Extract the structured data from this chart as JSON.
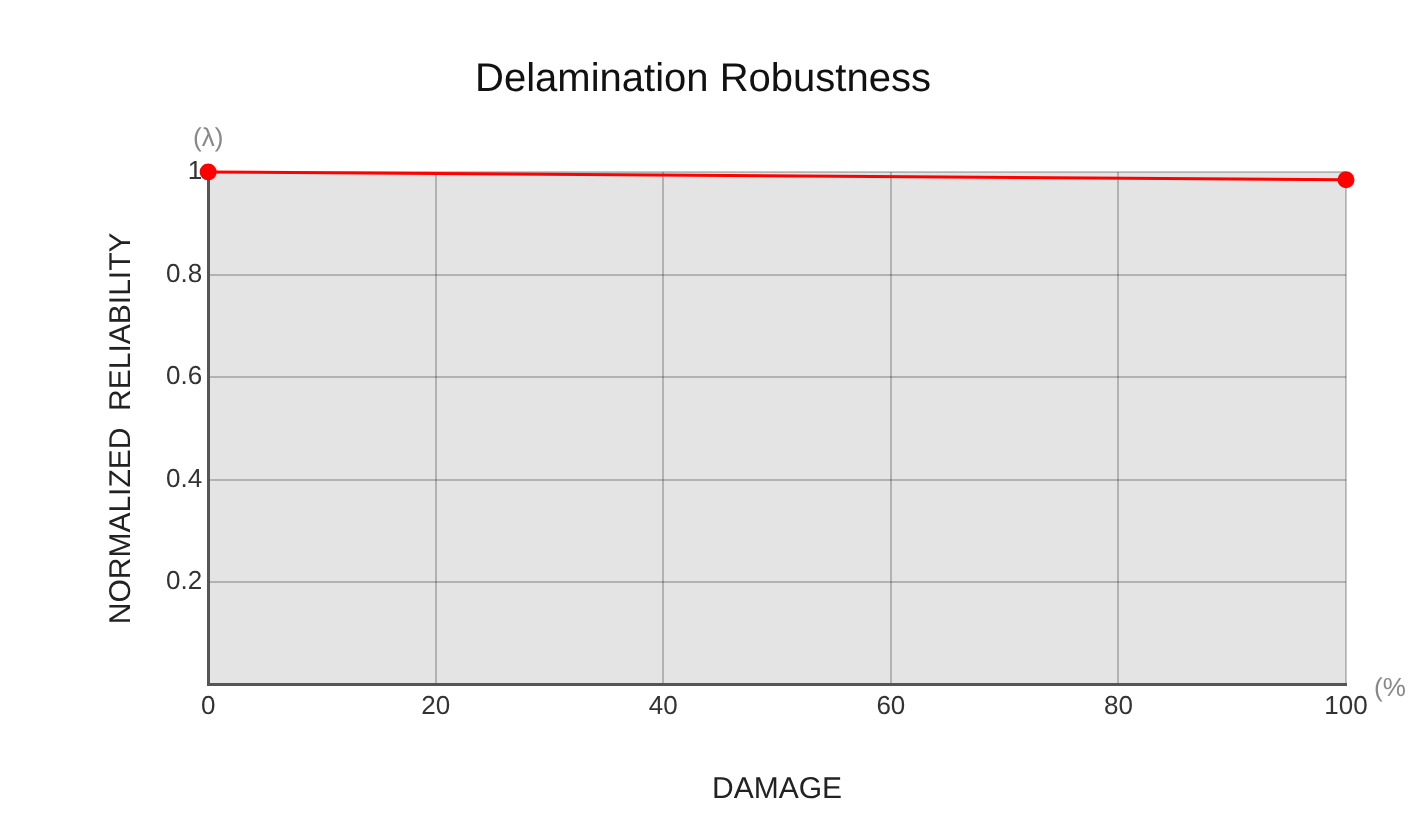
{
  "chart_data": {
    "type": "line",
    "title": "Delamination Robustness",
    "xlabel": "DAMAGE",
    "ylabel": "NORMALIZED  RELIABILITY",
    "annotations": [
      "(λ)",
      "(%"
    ],
    "x": [
      0,
      100
    ],
    "series": [
      {
        "color": "#ff0000",
        "values": [
          1,
          0.985
        ]
      }
    ],
    "xlim": [
      0,
      100
    ],
    "xticks": [
      0,
      20,
      40,
      60,
      80,
      100
    ],
    "ylim": [
      0,
      1
    ],
    "yticks": [
      {
        "value": 0,
        "label": null
      },
      0.2,
      0.4,
      0.6,
      0.8,
      1
    ],
    "grid": true,
    "legend": false,
    "marker": "circle",
    "line_style": "solid"
  }
}
